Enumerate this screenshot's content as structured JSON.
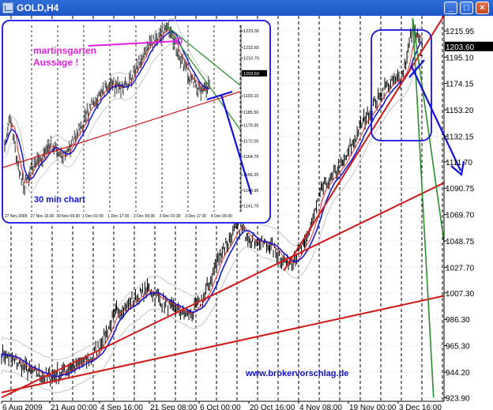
{
  "window": {
    "title": "GOLD,H4",
    "minimize_glyph": "_",
    "maximize_glyph": "□",
    "close_glyph": "×"
  },
  "chart_data": {
    "type": "line",
    "symbol": "GOLD",
    "timeframe": "H4",
    "current_price": 1203.6,
    "y_ticks": [
      1215.95,
      1195.1,
      1174.15,
      1153.2,
      1132.15,
      1111.7,
      1090.75,
      1069.7,
      1048.75,
      1027.7,
      1007.3,
      986.3,
      965.3,
      944.2,
      923.9
    ],
    "x_ticks": [
      "6 Aug 2009",
      "21 Aug 00:00",
      "4 Sep 16:00",
      "21 Sep 08:00",
      "6 Oct 00:00",
      "20 Oct 16:00",
      "4 Nov 08:00",
      "19 Nov 00:00",
      "3 Dec 16:00"
    ],
    "ylim": [
      921,
      1228
    ],
    "grid": true,
    "price_path": [
      {
        "date": "2009-08-06",
        "close": 960
      },
      {
        "date": "2009-08-14",
        "close": 945
      },
      {
        "date": "2009-08-20",
        "close": 940
      },
      {
        "date": "2009-08-26",
        "close": 948
      },
      {
        "date": "2009-09-01",
        "close": 955
      },
      {
        "date": "2009-09-08",
        "close": 992
      },
      {
        "date": "2009-09-17",
        "close": 1010
      },
      {
        "date": "2009-09-24",
        "close": 995
      },
      {
        "date": "2009-09-29",
        "close": 990
      },
      {
        "date": "2009-10-03",
        "close": 1003
      },
      {
        "date": "2009-10-08",
        "close": 1040
      },
      {
        "date": "2009-10-13",
        "close": 1060
      },
      {
        "date": "2009-10-17",
        "close": 1050
      },
      {
        "date": "2009-10-22",
        "close": 1045
      },
      {
        "date": "2009-10-27",
        "close": 1030
      },
      {
        "date": "2009-11-01",
        "close": 1045
      },
      {
        "date": "2009-11-06",
        "close": 1090
      },
      {
        "date": "2009-11-12",
        "close": 1110
      },
      {
        "date": "2009-11-18",
        "close": 1145
      },
      {
        "date": "2009-11-24",
        "close": 1170
      },
      {
        "date": "2009-11-29",
        "close": 1180
      },
      {
        "date": "2009-12-02",
        "close": 1218
      },
      {
        "date": "2009-12-05",
        "close": 1200
      }
    ],
    "trendlines": [
      {
        "color": "#d01818",
        "points": [
          {
            "date": "2009-10-26",
            "price": 1025
          },
          {
            "date": "2009-12-11",
            "price": 1228
          }
        ]
      },
      {
        "color": "#d01818",
        "points": [
          {
            "date": "2009-08-06",
            "price": 924
          },
          {
            "date": "2009-12-11",
            "price": 1095
          }
        ]
      },
      {
        "color": "#d01818",
        "points": [
          {
            "date": "2009-08-06",
            "price": 928
          },
          {
            "date": "2009-12-11",
            "price": 1005
          }
        ]
      },
      {
        "color": "#2a8f2a",
        "points": [
          {
            "date": "2009-12-02",
            "price": 1226
          },
          {
            "date": "2009-12-11",
            "price": 1048
          }
        ]
      },
      {
        "color": "#2a8f2a",
        "points": [
          {
            "date": "2009-12-02",
            "price": 1226
          },
          {
            "date": "2009-12-08",
            "price": 924
          }
        ]
      }
    ],
    "watermark": "www.brokervorschlag.de",
    "inset": {
      "title": "30 min chart",
      "annotation_line1": "martinsgarten",
      "annotation_line2": "Aussage !",
      "price_ticks": [
        "1223.35",
        "1215.65",
        "1210.70",
        "1203.60",
        "1193.10",
        "1185.50",
        "1179.35",
        "1172.05",
        "1164.75",
        "1156.25",
        "1148.95",
        "1141.70"
      ],
      "time_ticks": [
        "27 Nov 2009",
        "27 Nov 16:30",
        "30 Nov 09:30",
        "1 Dec 01:00",
        "1 Dec 17:30",
        "2 Dec 09:30",
        "3 Dec 01:30",
        "3 Dec 17:30",
        "4 Dec 09:30"
      ],
      "current_price": "1203.60"
    }
  }
}
